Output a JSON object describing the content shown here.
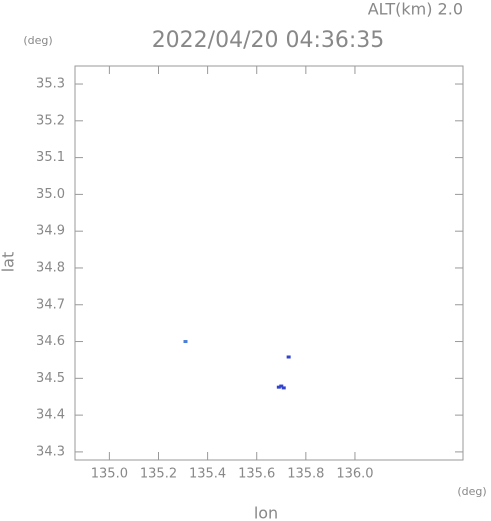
{
  "chart_data": {
    "type": "scatter",
    "title": "2022/04/20 04:36:35",
    "annotations": [
      "ALT(km) 2.0"
    ],
    "x_label": "lon",
    "y_label": "lat",
    "x_unit": "(deg)",
    "y_unit": "(deg)",
    "series": [
      {
        "color": "#4a7fd6",
        "x": [
          135.31
        ],
        "values": [
          34.6
        ]
      },
      {
        "color": "#3344cc",
        "x": [
          135.73,
          135.69,
          135.7,
          135.71
        ],
        "values": [
          34.558,
          34.476,
          34.479,
          34.474
        ]
      }
    ],
    "xlim": [
      134.86,
      136.44
    ],
    "ylim": [
      34.278,
      35.349
    ],
    "xticks": [
      {
        "value": 135.0,
        "label": "135.0"
      },
      135.2,
      135.4,
      135.6,
      135.8,
      {
        "value": 136.0,
        "label": "136.0"
      }
    ],
    "yticks": [
      35.3,
      35.2,
      35.1,
      {
        "value": 35.0,
        "label": "35.0"
      },
      34.9,
      34.8,
      34.7,
      34.6,
      34.5,
      34.4,
      34.3
    ]
  }
}
